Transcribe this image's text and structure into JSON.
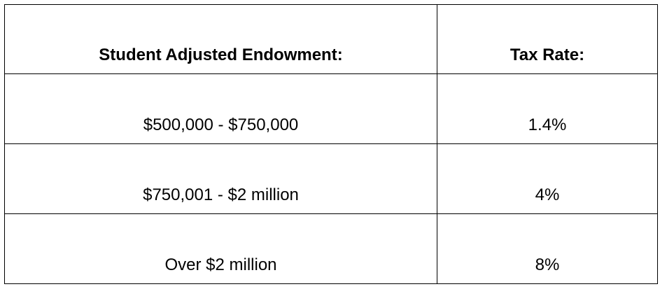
{
  "table": {
    "headers": [
      "Student Adjusted Endowment:",
      "Tax Rate:"
    ],
    "rows": [
      [
        "$500,000 - $750,000",
        "1.4%"
      ],
      [
        "$750,001 - $2 million",
        "4%"
      ],
      [
        "Over $2 million",
        "8%"
      ]
    ]
  }
}
